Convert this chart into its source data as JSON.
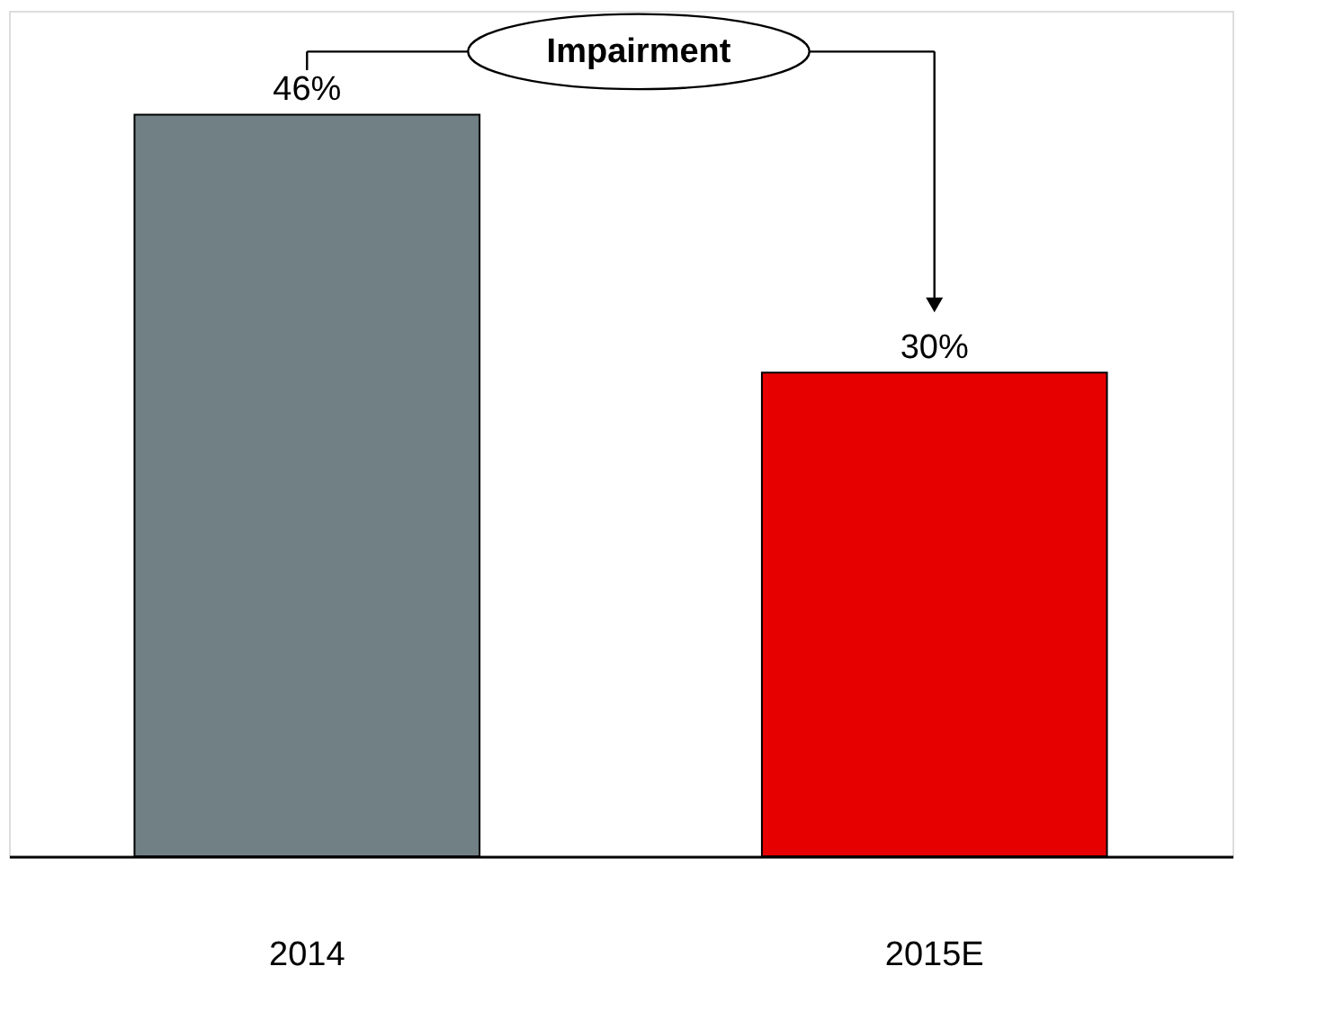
{
  "chart_data": {
    "type": "bar",
    "categories": [
      "2014",
      "2015E"
    ],
    "values": [
      46,
      30
    ],
    "colors": [
      "#708085",
      "#e60000"
    ],
    "value_labels": [
      "46%",
      "30%"
    ],
    "annotations": [
      "Impairment"
    ]
  }
}
